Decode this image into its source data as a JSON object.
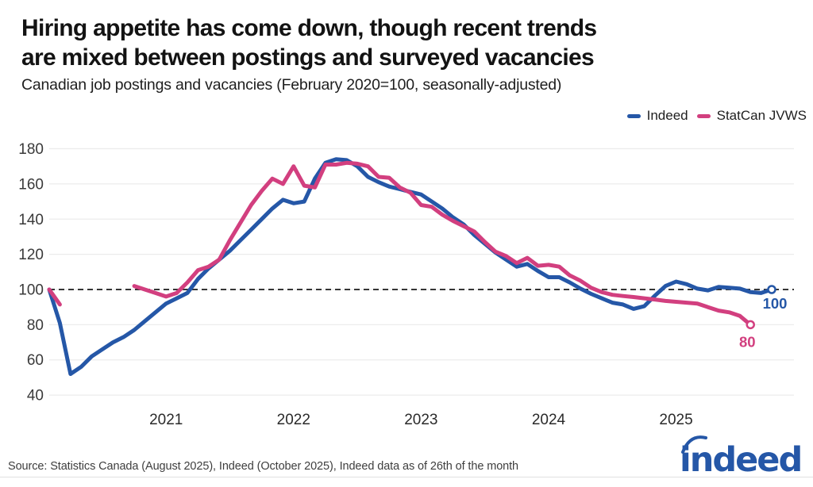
{
  "header": {
    "title_line1": "Hiring appetite has come down, though recent trends",
    "title_line2": "are mixed between postings and surveyed vacancies",
    "subtitle": "Canadian job postings and vacancies (February 2020=100, seasonally-adjusted)"
  },
  "legend": {
    "items": [
      {
        "label": "Indeed",
        "color": "#2557a7"
      },
      {
        "label": "StatCan JVWS",
        "color": "#d23f7f"
      }
    ]
  },
  "chart_data": {
    "type": "line",
    "title": "Hiring appetite has come down, though recent trends are mixed between postings and surveyed vacancies",
    "subtitle": "Canadian job postings and vacancies (February 2020=100, seasonally-adjusted)",
    "frequency": "monthly",
    "start_month": "2020-02",
    "grid": "horizontal",
    "grid_color": "#ececec",
    "legend_position": "top-right",
    "x_axis": {
      "tick_years": [
        2021,
        2022,
        2023,
        2024,
        2025
      ]
    },
    "y_axis": {
      "ticks": [
        40,
        60,
        80,
        100,
        120,
        140,
        160,
        180
      ],
      "range": [
        40,
        180
      ]
    },
    "baseline": {
      "value": 100,
      "style": "dashed",
      "color": "#1a1a1a"
    },
    "series": [
      {
        "name": "Indeed",
        "color": "#2557a7",
        "end_label": "100",
        "end_marker": true,
        "last_month": "2025-10",
        "values": [
          100,
          81,
          52,
          56,
          62,
          66,
          70,
          73,
          77,
          82,
          87,
          92,
          95,
          98,
          106,
          112,
          117,
          122,
          128,
          134,
          140,
          146,
          151,
          149,
          150,
          163,
          172,
          174,
          173.5,
          170,
          164,
          161,
          158.5,
          157,
          155.5,
          154,
          150,
          146,
          141,
          137,
          131,
          126,
          121,
          117,
          113,
          114.5,
          110.5,
          107,
          107,
          104,
          100.5,
          97.5,
          95,
          92.5,
          91.5,
          89,
          90.5,
          96.5,
          102,
          104.5,
          103,
          100.5,
          99.5,
          101.5,
          101,
          100.5,
          98.5,
          98,
          100
        ]
      },
      {
        "name": "StatCan JVWS",
        "color": "#d23f7f",
        "end_label": "80",
        "end_marker": true,
        "last_month": "2025-08",
        "values": [
          100,
          91.5,
          null,
          null,
          null,
          null,
          null,
          null,
          102,
          100,
          98,
          96,
          98,
          104,
          111,
          113,
          117,
          128,
          138,
          148,
          156,
          163,
          160,
          170,
          159,
          158,
          171,
          171,
          172,
          171.5,
          170,
          164,
          163.5,
          158,
          155,
          148,
          147,
          142.5,
          139,
          136,
          133,
          127,
          121.5,
          119,
          115,
          118,
          113.5,
          114,
          113,
          108,
          105,
          101,
          98.5,
          97,
          96.3,
          95.7,
          95,
          94.3,
          93.5,
          93,
          92.5,
          92,
          90,
          88,
          87,
          85,
          80
        ]
      }
    ]
  },
  "footer": {
    "source": "Source: Statistics Canada (August 2025), Indeed (October 2025), Indeed data as of 26th of the month",
    "logo_text": "indeed",
    "logo_color": "#2557a7"
  }
}
